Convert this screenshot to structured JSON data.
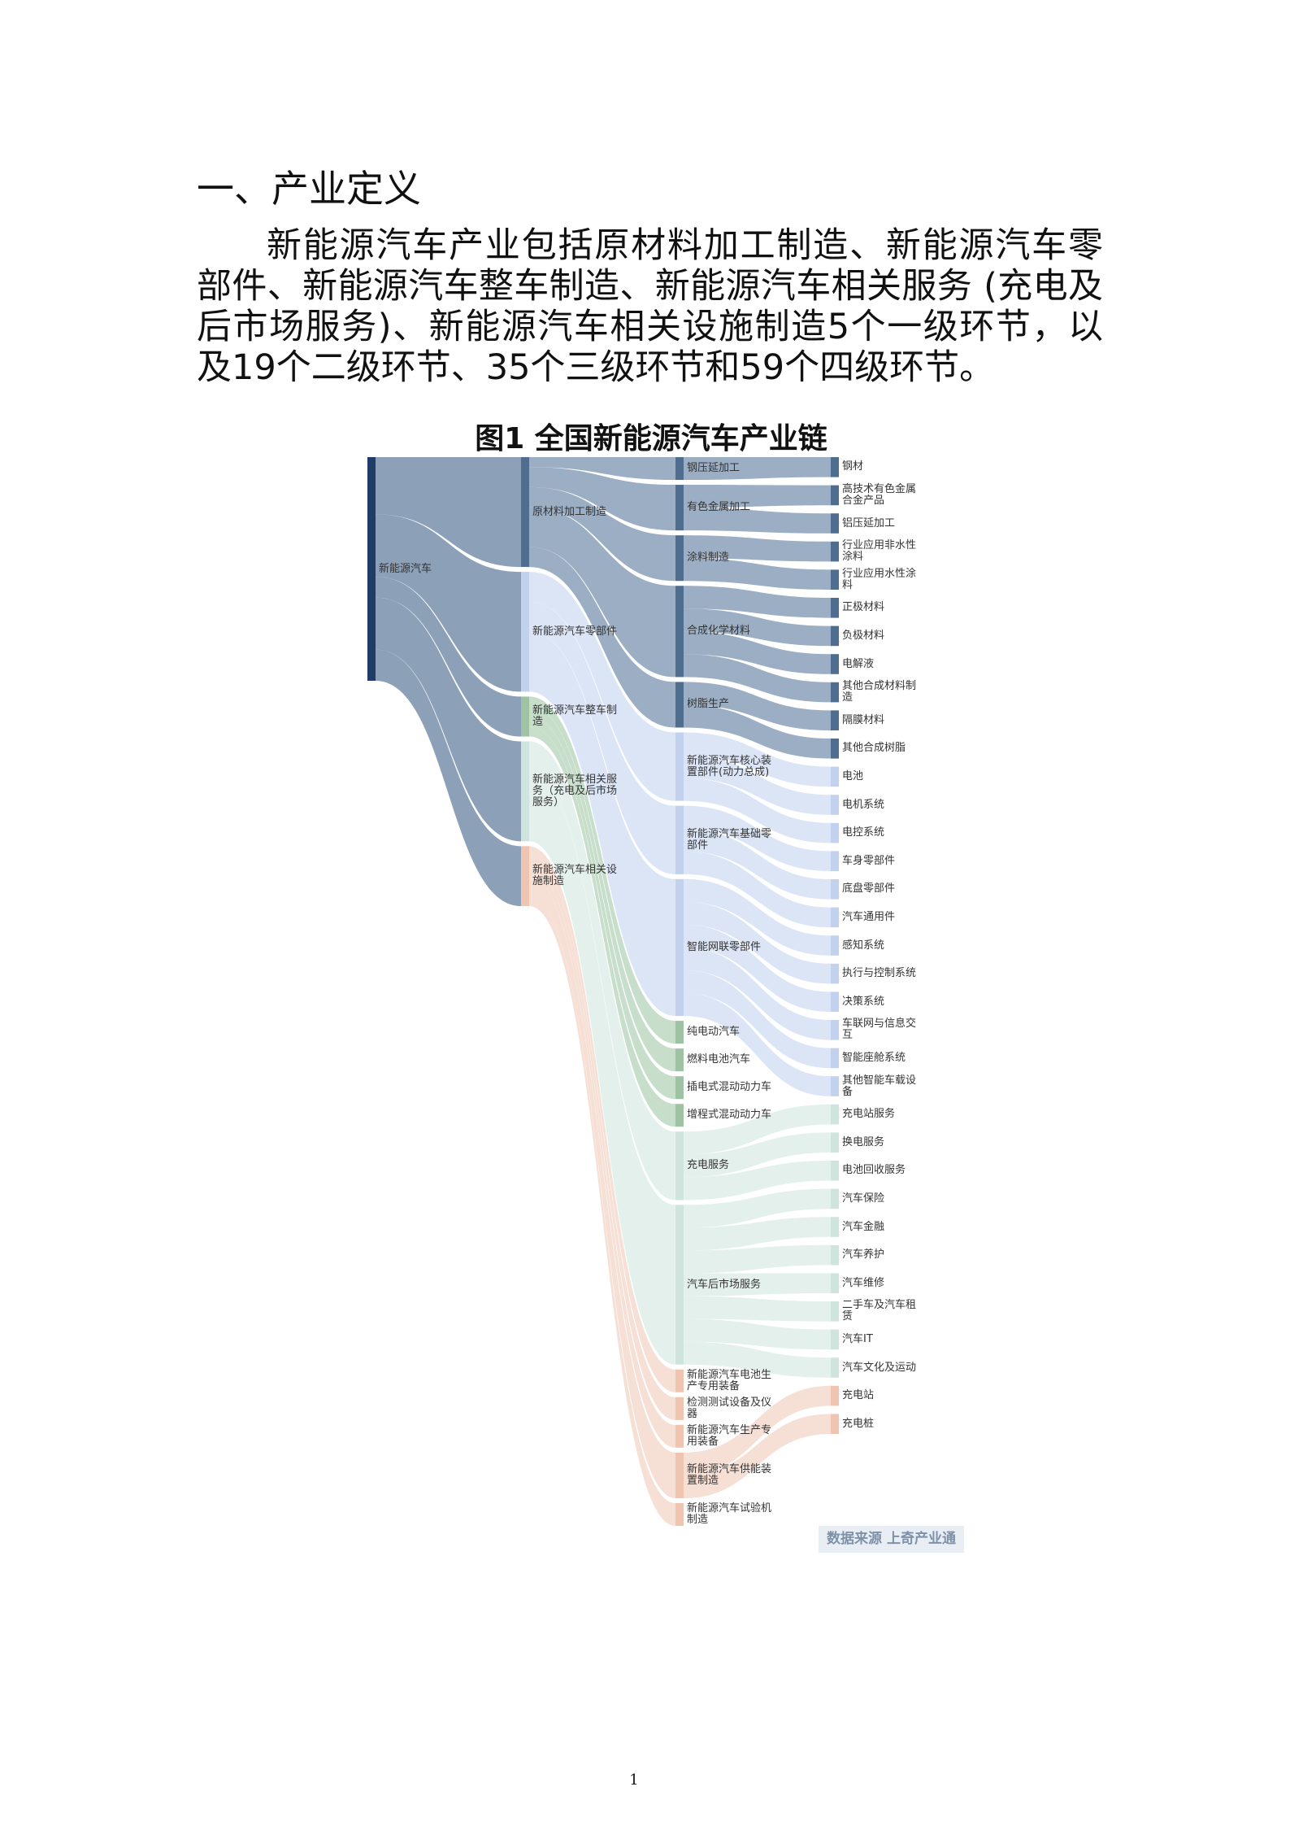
{
  "section": {
    "heading": "一、产业定义",
    "paragraph": "新能源汽车产业包括原材料加工制造、新能源汽车零部件、新能源汽车整车制造、新能源汽车相关服务 (充电及后市场服务)、新能源汽车相关设施制造5个一级环节，以及19个二级环节、35个三级环节和59个四级环节。"
  },
  "figure": {
    "title": "图1 全国新能源汽车产业链",
    "tree": {
      "label": "新能源汽车",
      "children": [
        {
          "label": "原材料加工制造",
          "children": [
            {
              "label": "钢压延加工",
              "children": [
                {
                  "label": "钢材"
                }
              ]
            },
            {
              "label": "有色金属加工",
              "children": [
                {
                  "label": "高技术有色金属合金产品"
                },
                {
                  "label": "铝压延加工"
                }
              ]
            },
            {
              "label": "涂料制造",
              "children": [
                {
                  "label": "行业应用非水性涂料"
                },
                {
                  "label": "行业应用水性涂料"
                }
              ]
            },
            {
              "label": "合成化学材料",
              "children": [
                {
                  "label": "正极材料"
                },
                {
                  "label": "负极材料"
                },
                {
                  "label": "电解液"
                },
                {
                  "label": "其他合成材料制造"
                }
              ]
            },
            {
              "label": "树脂生产",
              "children": [
                {
                  "label": "隔膜材料"
                },
                {
                  "label": "其他合成树脂"
                }
              ]
            }
          ]
        },
        {
          "label": "新能源汽车零部件",
          "children": [
            {
              "label": "新能源汽车核心装置部件(动力总成)",
              "children": [
                {
                  "label": "电池"
                },
                {
                  "label": "电机系统"
                },
                {
                  "label": "电控系统"
                }
              ]
            },
            {
              "label": "新能源汽车基础零部件",
              "children": [
                {
                  "label": "车身零部件"
                },
                {
                  "label": "底盘零部件"
                },
                {
                  "label": "汽车通用件"
                }
              ]
            },
            {
              "label": "智能网联零部件",
              "children": [
                {
                  "label": "感知系统"
                },
                {
                  "label": "执行与控制系统"
                },
                {
                  "label": "决策系统"
                },
                {
                  "label": "车联网与信息交互"
                },
                {
                  "label": "智能座舱系统"
                },
                {
                  "label": "其他智能车载设备"
                }
              ]
            }
          ]
        },
        {
          "label": "新能源汽车整车制造",
          "children": [
            {
              "label": "纯电动汽车"
            },
            {
              "label": "燃料电池汽车"
            },
            {
              "label": "插电式混动动力车"
            },
            {
              "label": "增程式混动动力车"
            }
          ]
        },
        {
          "label": "新能源汽车相关服务（充电及后市场服务）",
          "children": [
            {
              "label": "充电服务",
              "children": [
                {
                  "label": "充电站服务"
                },
                {
                  "label": "换电服务"
                },
                {
                  "label": "电池回收服务"
                }
              ]
            },
            {
              "label": "汽车后市场服务",
              "children": [
                {
                  "label": "汽车保险"
                },
                {
                  "label": "汽车金融"
                },
                {
                  "label": "汽车养护"
                },
                {
                  "label": "汽车维修"
                },
                {
                  "label": "二手车及汽车租赁"
                },
                {
                  "label": "汽车IT"
                },
                {
                  "label": "汽车文化及运动"
                }
              ]
            }
          ]
        },
        {
          "label": "新能源汽车相关设施制造",
          "children": [
            {
              "label": "新能源汽车电池生产专用装备"
            },
            {
              "label": "检测测试设备及仪器"
            },
            {
              "label": "新能源汽车生产专用装备"
            },
            {
              "label": "新能源汽车供能装置制造",
              "children": [
                {
                  "label": "充电站"
                },
                {
                  "label": "充电桩"
                }
              ]
            },
            {
              "label": "新能源汽车试验机制造"
            }
          ]
        }
      ]
    },
    "source": "数据来源 上奇产业通"
  },
  "page_number": "1"
}
